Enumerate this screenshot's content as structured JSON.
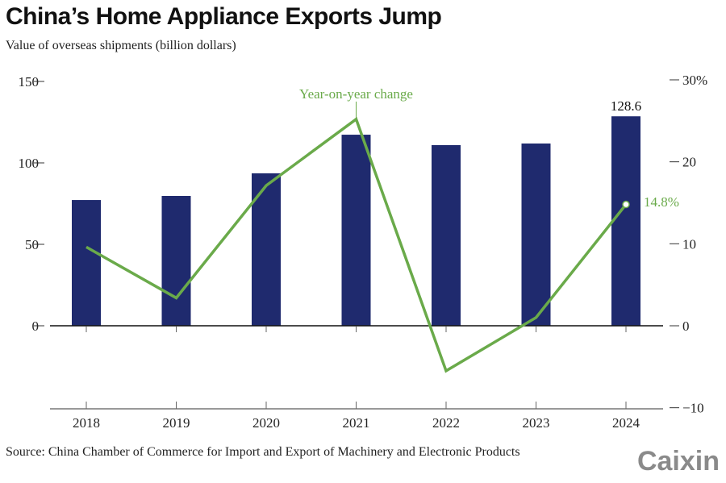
{
  "title": "China’s Home Appliance Exports Jump",
  "subtitle": "Value of overseas shipments (billion dollars)",
  "source": "Source: China Chamber of Commerce for Import and Export of Machinery and Electronic Products",
  "logo": "Caixin",
  "chart_data": {
    "type": "bar+line",
    "categories": [
      "2018",
      "2019",
      "2020",
      "2021",
      "2022",
      "2023",
      "2024"
    ],
    "series": [
      {
        "type": "bar",
        "axis": "left",
        "values": [
          77.2,
          79.7,
          93.6,
          117.3,
          110.9,
          111.9,
          128.6
        ],
        "color": "#1f2a6e"
      },
      {
        "type": "line",
        "axis": "right",
        "name": "Year-on-year change",
        "values": [
          9.6,
          3.4,
          17.1,
          25.2,
          -5.5,
          1.0,
          14.8
        ],
        "color": "#6aaa4a"
      }
    ],
    "left_axis": {
      "ylim": [
        0,
        150
      ],
      "ticks": [
        "0",
        "50",
        "100",
        "150"
      ]
    },
    "right_axis": {
      "ylim": [
        -10,
        30
      ],
      "ticks": [
        "−10",
        "0",
        "10",
        "20",
        "30%"
      ]
    },
    "annotations": {
      "bar_label": "128.6",
      "line_label": "14.8%",
      "series_label": "Year-on-year change"
    },
    "grid": false
  }
}
